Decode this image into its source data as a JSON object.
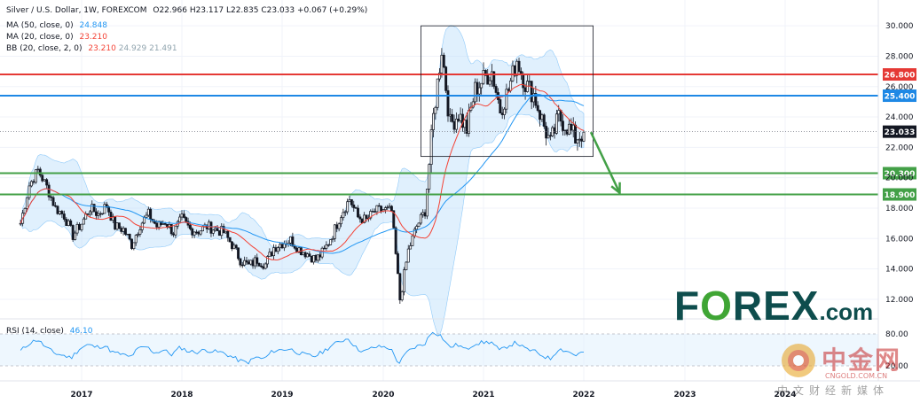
{
  "header": {
    "symbol": "Silver / U.S. Dollar, 1W, FOREXCOM",
    "open": "O22.966",
    "high": "H23.117",
    "low": "L22.835",
    "close": "C23.033",
    "change": "+0.067 (+0.29%)",
    "ma50_label": "MA (50, close, 0)",
    "ma50_value": "24.848",
    "ma20_label": "MA (20, close, 0)",
    "ma20_value": "23.210",
    "bb_label": "BB (20, close, 2, 0)",
    "bb_mid": "23.210",
    "bb_upper": "24.929",
    "bb_lower": "21.491"
  },
  "rsi": {
    "label": "RSI (14, close)",
    "value": "46.10",
    "tick_80": "80.00",
    "tick_20": "20.00"
  },
  "price_tag": "23.033",
  "levels": [
    {
      "label": "26.800",
      "value": 26.8,
      "color": "#e53935"
    },
    {
      "label": "25.400",
      "value": 25.4,
      "color": "#1e88e5"
    },
    {
      "label": "20.300",
      "value": 20.3,
      "color": "#43a047"
    },
    {
      "label": "18.900",
      "value": 18.9,
      "color": "#43a047"
    }
  ],
  "colors": {
    "up": "#131722",
    "down": "#131722",
    "ma50": "#2196f3",
    "ma20": "#f44336",
    "bb_fill": "#bbdefb",
    "rsi_line": "#2196f3",
    "arrow": "#43a047",
    "brand": "#0e4d4d"
  },
  "logos": {
    "forex_text": "F",
    "forex_rest": "REX",
    "forex_dotcom": ".com",
    "cn_name": "中金网",
    "cn_url": "CNGOLD.COM.CN",
    "cn_slogan": "中文财经新媒体"
  },
  "chart_data": {
    "type": "candlestick",
    "title": "Silver / U.S. Dollar, 1W, FOREXCOM",
    "xlabel": "",
    "ylabel": "",
    "ylim": [
      11,
      31
    ],
    "y_ticks": [
      "30.000",
      "28.000",
      "26.000",
      "24.000",
      "22.000",
      "20.000",
      "18.000",
      "16.000",
      "14.000",
      "12.000"
    ],
    "x_ticks": [
      "2017",
      "2018",
      "2019",
      "2020",
      "2021",
      "2022",
      "2023",
      "2024"
    ],
    "grid": true,
    "series": [
      {
        "name": "Silver (close)",
        "points": [
          [
            "2016-06",
            17.0
          ],
          [
            "2016-07",
            19.5
          ],
          [
            "2016-08",
            20.5
          ],
          [
            "2016-09",
            19.4
          ],
          [
            "2016-10",
            18.0
          ],
          [
            "2016-11",
            17.5
          ],
          [
            "2016-12",
            16.2
          ],
          [
            "2017-01",
            17.0
          ],
          [
            "2017-02",
            18.0
          ],
          [
            "2017-03",
            17.6
          ],
          [
            "2017-04",
            18.2
          ],
          [
            "2017-05",
            16.8
          ],
          [
            "2017-06",
            16.6
          ],
          [
            "2017-07",
            15.6
          ],
          [
            "2017-08",
            16.9
          ],
          [
            "2017-09",
            17.6
          ],
          [
            "2017-10",
            16.8
          ],
          [
            "2017-11",
            17.1
          ],
          [
            "2017-12",
            16.4
          ],
          [
            "2018-01",
            17.3
          ],
          [
            "2018-02",
            16.6
          ],
          [
            "2018-03",
            16.5
          ],
          [
            "2018-04",
            16.8
          ],
          [
            "2018-05",
            16.6
          ],
          [
            "2018-06",
            16.4
          ],
          [
            "2018-07",
            15.6
          ],
          [
            "2018-08",
            14.6
          ],
          [
            "2018-09",
            14.2
          ],
          [
            "2018-10",
            14.6
          ],
          [
            "2018-11",
            14.3
          ],
          [
            "2018-12",
            15.4
          ],
          [
            "2019-01",
            15.7
          ],
          [
            "2019-02",
            15.9
          ],
          [
            "2019-03",
            15.3
          ],
          [
            "2019-04",
            15.0
          ],
          [
            "2019-05",
            14.6
          ],
          [
            "2019-06",
            15.2
          ],
          [
            "2019-07",
            16.3
          ],
          [
            "2019-08",
            17.6
          ],
          [
            "2019-09",
            18.6
          ],
          [
            "2019-10",
            17.4
          ],
          [
            "2019-11",
            17.2
          ],
          [
            "2019-12",
            17.8
          ],
          [
            "2020-01",
            17.9
          ],
          [
            "2020-02",
            17.8
          ],
          [
            "2020-03",
            12.0
          ],
          [
            "2020-04",
            15.2
          ],
          [
            "2020-05",
            16.8
          ],
          [
            "2020-06",
            17.8
          ],
          [
            "2020-07",
            24.0
          ],
          [
            "2020-08",
            28.5
          ],
          [
            "2020-09",
            23.5
          ],
          [
            "2020-10",
            24.2
          ],
          [
            "2020-11",
            23.2
          ],
          [
            "2020-12",
            25.8
          ],
          [
            "2021-01",
            26.5
          ],
          [
            "2021-02",
            27.0
          ],
          [
            "2021-03",
            24.5
          ],
          [
            "2021-04",
            25.8
          ],
          [
            "2021-05",
            27.8
          ],
          [
            "2021-06",
            26.2
          ],
          [
            "2021-07",
            25.5
          ],
          [
            "2021-08",
            23.8
          ],
          [
            "2021-09",
            22.2
          ],
          [
            "2021-10",
            24.0
          ],
          [
            "2021-11",
            23.4
          ],
          [
            "2021-12",
            22.6
          ],
          [
            "2022-01",
            23.0
          ]
        ]
      },
      {
        "name": "MA (50, close, 0)",
        "last": 24.848
      },
      {
        "name": "MA (20, close, 0)",
        "last": 23.21
      }
    ],
    "rsi": {
      "ylim": [
        0,
        100
      ],
      "last": 46.1,
      "points": [
        48,
        62,
        70,
        55,
        44,
        40,
        35,
        52,
        60,
        55,
        58,
        45,
        42,
        36,
        52,
        56,
        44,
        50,
        41,
        55,
        47,
        46,
        50,
        47,
        45,
        38,
        30,
        26,
        36,
        33,
        48,
        50,
        52,
        45,
        40,
        38,
        47,
        58,
        66,
        72,
        52,
        47,
        55,
        56,
        53,
        24,
        46,
        56,
        60,
        85,
        77,
        55,
        60,
        50,
        62,
        64,
        65,
        48,
        58,
        64,
        52,
        48,
        40,
        33,
        52,
        48,
        40,
        46
      ]
    },
    "annotations": [
      {
        "type": "box",
        "x_start": "2020-07",
        "x_end": "2021-12",
        "y_low": 21.4,
        "y_high": 30.0
      },
      {
        "type": "arrow",
        "from": [
          "2022-01",
          23.0
        ],
        "to": [
          "2022-04",
          19.0
        ]
      }
    ]
  }
}
